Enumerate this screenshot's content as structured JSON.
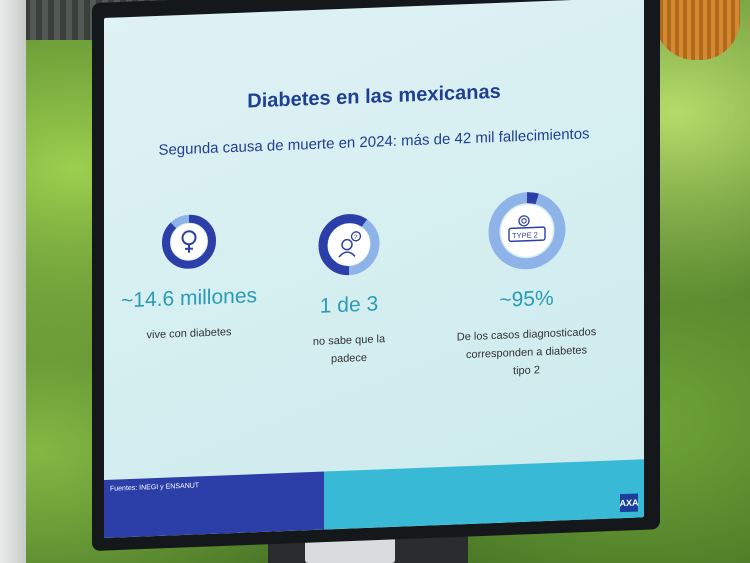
{
  "slide": {
    "title": "Diabetes en las mexicanas",
    "subtitle": "Segunda causa de muerte en 2024: más de 42 mil fallecimientos",
    "stats": [
      {
        "value": "~14.6 millones",
        "desc_lines": [
          "vive con diabetes"
        ],
        "icon": "female-symbol-icon",
        "fraction": 0.88
      },
      {
        "value": "1 de 3",
        "desc_lines": [
          "no sabe que la",
          "padece"
        ],
        "icon": "confused-woman-icon",
        "fraction": 0.6
      },
      {
        "value": "~95%",
        "desc_lines": [
          "De los casos diagnosticados",
          "corresponden a diabetes",
          "tipo 2"
        ],
        "icon": "type-2-icon",
        "fraction": 0.05
      }
    ],
    "type_label": "TYPE 2",
    "source": "Fuentes: INEGI y ENSANUT",
    "logo_text": "AXA"
  },
  "colors": {
    "dark_blue": "#2c3fa8",
    "light_blue": "#8db3e8",
    "teal": "#38b9d6",
    "title_blue": "#1f3f93"
  }
}
